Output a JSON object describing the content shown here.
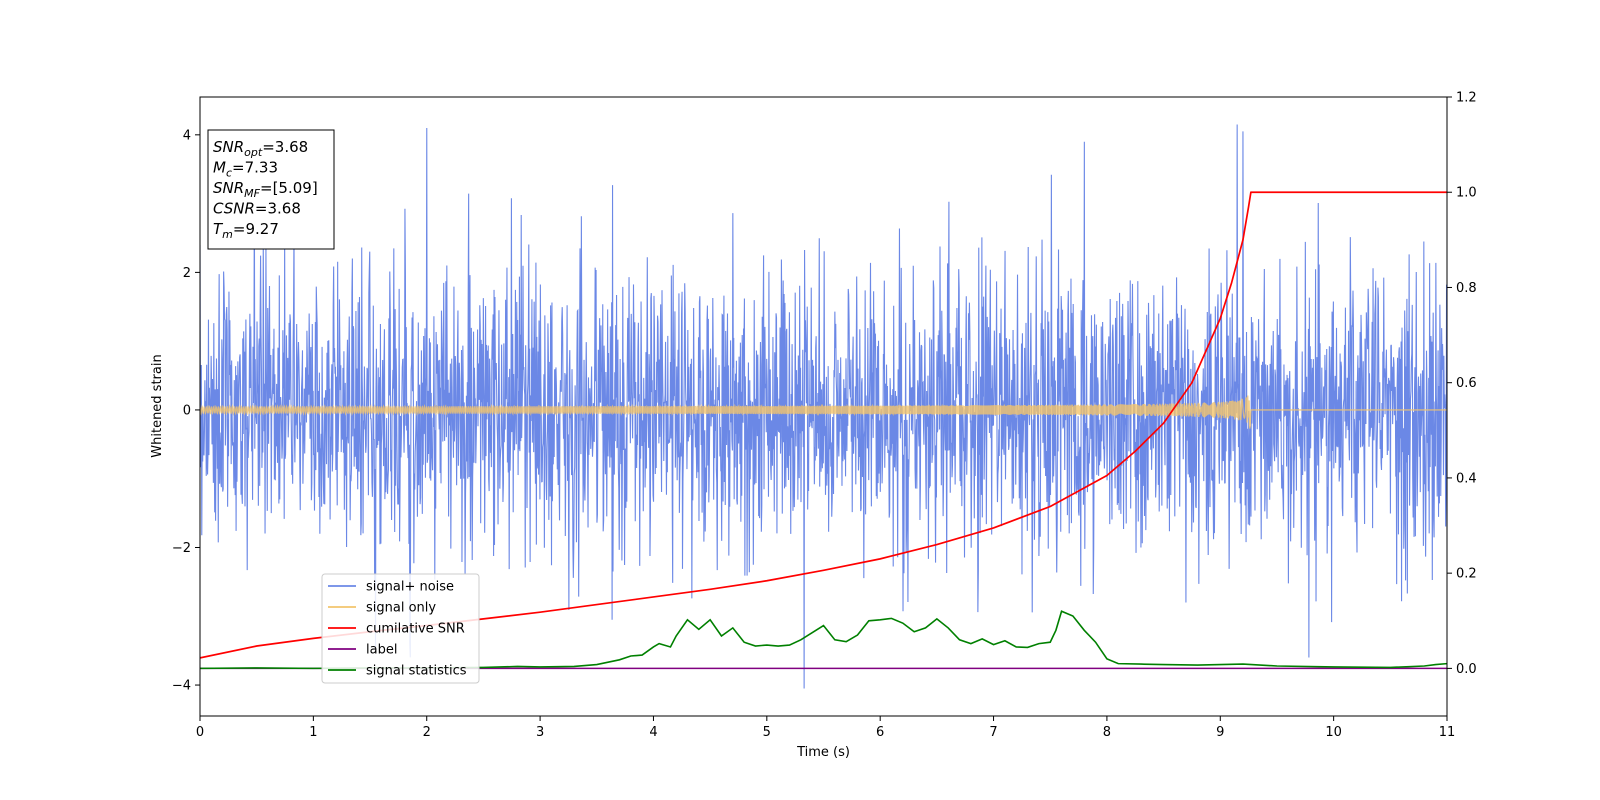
{
  "chart_data": {
    "type": "line",
    "xlabel": "Time (s)",
    "ylabel": "Whitened strain",
    "xlim": [
      0,
      11
    ],
    "ylim": [
      -4.45,
      4.55
    ],
    "y2lim": [
      -0.1,
      1.2
    ],
    "x_ticks": [
      0,
      1,
      2,
      3,
      4,
      5,
      6,
      7,
      8,
      9,
      10,
      11
    ],
    "y_ticks": [
      -4,
      -2,
      0,
      2,
      4
    ],
    "y2_ticks": [
      "0.0",
      "0.2",
      "0.4",
      "0.6",
      "0.8",
      "1.0",
      "1.2"
    ],
    "grid": false,
    "legend_position": "lower-left",
    "colors": {
      "signal_noise": "#6b88e6",
      "signal_only": "#f2c46d",
      "cumulative_snr": "#ff0000",
      "label": "#800080",
      "signal_statistics": "#008000"
    },
    "annotation": {
      "lines": [
        {
          "base": "SNR",
          "sub": "opt",
          "value": "=3.68"
        },
        {
          "base": "M",
          "sub": "c",
          "value": "=7.33"
        },
        {
          "base": "SNR",
          "sub": "MF",
          "value": "=[5.09]"
        },
        {
          "base": "CSNR",
          "sub": "",
          "value": "=3.68"
        },
        {
          "base": "T",
          "sub": "m",
          "value": "=9.27"
        }
      ]
    },
    "series": [
      {
        "name": "signal+ noise",
        "axis": "left",
        "amplitude_sigma": 1.0,
        "notable_peaks": [
          [
            0.0,
            2.4
          ],
          [
            2.0,
            4.1
          ],
          [
            5.33,
            -4.05
          ],
          [
            7.8,
            3.9
          ],
          [
            9.15,
            4.15
          ],
          [
            9.2,
            4.05
          ],
          [
            9.78,
            -3.6
          ],
          [
            1.85,
            -3.4
          ],
          [
            1.55,
            -3.5
          ]
        ]
      },
      {
        "name": "signal only",
        "axis": "left",
        "merger_time": 9.27,
        "peak_amplitude": 0.38
      },
      {
        "name": "cumilative SNR",
        "axis": "right",
        "x": [
          0,
          0.5,
          1,
          1.5,
          2,
          2.5,
          3,
          3.5,
          4,
          4.5,
          5,
          5.5,
          6,
          6.5,
          7,
          7.5,
          8,
          8.25,
          8.5,
          8.75,
          9,
          9.1,
          9.2,
          9.25,
          9.27,
          11
        ],
        "y": [
          0.022,
          0.047,
          0.063,
          0.077,
          0.09,
          0.104,
          0.118,
          0.134,
          0.15,
          0.166,
          0.184,
          0.206,
          0.23,
          0.26,
          0.295,
          0.34,
          0.405,
          0.456,
          0.515,
          0.6,
          0.735,
          0.81,
          0.9,
          0.97,
          1.0,
          1.0
        ]
      },
      {
        "name": "label",
        "axis": "right",
        "x": [
          0,
          11
        ],
        "y": [
          0,
          0
        ]
      },
      {
        "name": "signal statistics",
        "axis": "right",
        "x": [
          0,
          0.5,
          1,
          1.5,
          2,
          2.5,
          2.8,
          3,
          3.3,
          3.5,
          3.7,
          3.8,
          3.9,
          4.0,
          4.05,
          4.15,
          4.2,
          4.3,
          4.4,
          4.5,
          4.6,
          4.7,
          4.8,
          4.9,
          5.0,
          5.1,
          5.2,
          5.3,
          5.4,
          5.5,
          5.6,
          5.7,
          5.8,
          5.9,
          6.0,
          6.1,
          6.2,
          6.3,
          6.4,
          6.5,
          6.6,
          6.7,
          6.8,
          6.9,
          7.0,
          7.1,
          7.2,
          7.3,
          7.4,
          7.5,
          7.55,
          7.6,
          7.7,
          7.8,
          7.9,
          8.0,
          8.1,
          8.3,
          8.5,
          8.8,
          9.0,
          9.2,
          9.5,
          10.0,
          10.5,
          10.8,
          10.9,
          11.0
        ],
        "y": [
          0.0,
          0.001,
          0.0,
          0.001,
          0.001,
          0.002,
          0.004,
          0.003,
          0.004,
          0.008,
          0.018,
          0.026,
          0.028,
          0.045,
          0.052,
          0.045,
          0.068,
          0.102,
          0.082,
          0.102,
          0.068,
          0.085,
          0.055,
          0.047,
          0.049,
          0.047,
          0.049,
          0.06,
          0.075,
          0.09,
          0.06,
          0.056,
          0.07,
          0.1,
          0.102,
          0.105,
          0.095,
          0.077,
          0.085,
          0.104,
          0.085,
          0.06,
          0.052,
          0.062,
          0.05,
          0.058,
          0.045,
          0.044,
          0.052,
          0.055,
          0.08,
          0.12,
          0.11,
          0.08,
          0.055,
          0.02,
          0.01,
          0.009,
          0.008,
          0.007,
          0.008,
          0.009,
          0.005,
          0.003,
          0.002,
          0.005,
          0.008,
          0.01
        ]
      }
    ]
  }
}
